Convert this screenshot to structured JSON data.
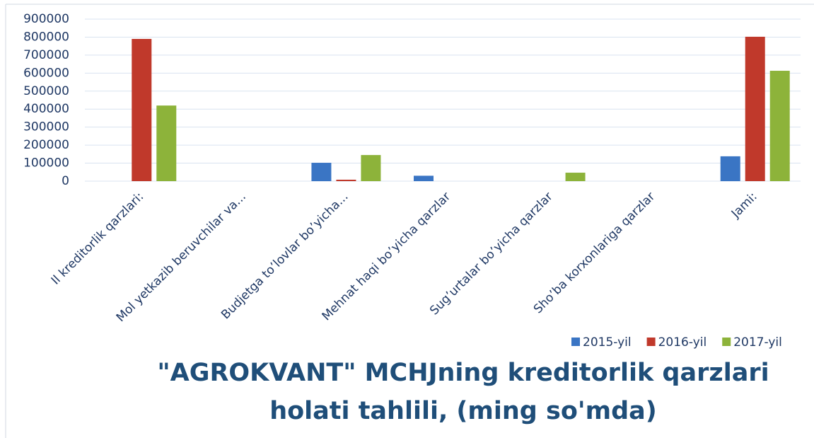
{
  "chart_data": {
    "type": "bar",
    "title": "\"AGROKVANT\" MCHJning kreditorlik qarzlari holati tahlili, (ming so'mda)",
    "categories": [
      "Il kreditorlik qarzlari:",
      "Mol yetkazib beruvchilar va...",
      "Budjetga to’lovlar bo’yicha...",
      "Mehnat haqi bo’yicha qarzlar",
      "Sug’urtalar bo’yicha qarzlar",
      "Sho’ba korxonlariga qarzlar",
      "Jami:"
    ],
    "series": [
      {
        "name": "2015-yil",
        "color": "#3a75c4",
        "values": [
          0,
          0,
          102000,
          30000,
          0,
          0,
          138000
        ]
      },
      {
        "name": "2016-yil",
        "color": "#c0392b",
        "values": [
          790000,
          0,
          8000,
          0,
          0,
          0,
          802000
        ]
      },
      {
        "name": "2017-yil",
        "color": "#8db33a",
        "values": [
          420000,
          0,
          145000,
          0,
          47000,
          0,
          613000
        ]
      }
    ],
    "ylim": [
      0,
      900000
    ],
    "yticks": [
      0,
      100000,
      200000,
      300000,
      400000,
      500000,
      600000,
      700000,
      800000,
      900000
    ],
    "grid": true,
    "legend": "bottom-right"
  }
}
